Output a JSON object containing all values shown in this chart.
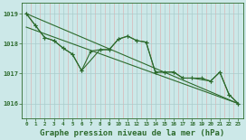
{
  "bg_color": "#cce8e8",
  "grid_color_major": "#aacccc",
  "grid_color_minor": "#ddaaaa",
  "line_color": "#2d6b2d",
  "title": "Graphe pression niveau de la mer (hPa)",
  "title_fontsize": 6.5,
  "xlim": [
    -0.5,
    23.5
  ],
  "ylim": [
    1015.5,
    1019.35
  ],
  "yticks": [
    1016,
    1017,
    1018,
    1019
  ],
  "xticks": [
    0,
    1,
    2,
    3,
    4,
    5,
    6,
    7,
    8,
    9,
    10,
    11,
    12,
    13,
    14,
    15,
    16,
    17,
    18,
    19,
    20,
    21,
    22,
    23
  ],
  "series_jagged1_x": [
    0,
    1,
    2,
    3,
    4,
    5,
    6,
    7,
    8,
    9,
    10,
    11,
    12,
    13,
    14,
    15,
    16,
    17,
    18,
    19,
    20,
    21,
    22,
    23
  ],
  "series_jagged1_y": [
    1019.0,
    1018.6,
    1018.2,
    1018.1,
    1017.85,
    1017.65,
    1017.1,
    1017.75,
    1017.8,
    1017.8,
    1018.15,
    1018.25,
    1018.1,
    1018.05,
    1017.05,
    1017.05,
    1017.05,
    1016.85,
    1016.85,
    1016.85,
    1016.75,
    1017.05,
    1016.3,
    1016.0
  ],
  "series_jagged2_x": [
    0,
    1,
    2,
    3,
    4,
    5,
    6,
    8,
    9,
    10,
    11,
    12,
    13,
    14,
    15,
    16,
    17,
    18,
    20,
    21,
    22,
    23
  ],
  "series_jagged2_y": [
    1019.0,
    1018.6,
    1018.2,
    1018.1,
    1017.85,
    1017.65,
    1017.1,
    1017.8,
    1017.8,
    1018.15,
    1018.25,
    1018.1,
    1018.05,
    1017.05,
    1017.05,
    1017.05,
    1016.85,
    1016.85,
    1016.75,
    1017.05,
    1016.3,
    1016.0
  ],
  "trend1_x": [
    0,
    23
  ],
  "trend1_y": [
    1019.0,
    1016.0
  ],
  "trend2_x": [
    0,
    23
  ],
  "trend2_y": [
    1018.55,
    1016.0
  ]
}
